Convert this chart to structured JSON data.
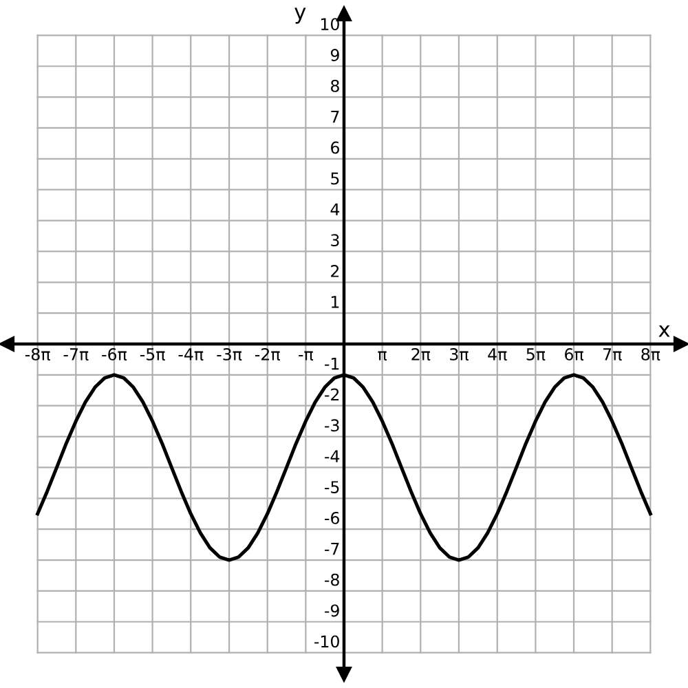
{
  "chart_data": {
    "type": "line",
    "xlabel": "x",
    "ylabel": "y",
    "xlim": [
      -27.65,
      27.65
    ],
    "ylim": [
      -10.7,
      10.7
    ],
    "xticks": [
      {
        "value": -25.13,
        "label": "-8π"
      },
      {
        "value": -21.99,
        "label": "-7π"
      },
      {
        "value": -18.85,
        "label": "-6π"
      },
      {
        "value": -15.71,
        "label": "-5π"
      },
      {
        "value": -12.57,
        "label": "-4π"
      },
      {
        "value": -9.42,
        "label": "-3π"
      },
      {
        "value": -6.28,
        "label": "-2π"
      },
      {
        "value": -3.14,
        "label": "-π"
      },
      {
        "value": 3.14,
        "label": "π"
      },
      {
        "value": 6.28,
        "label": "2π"
      },
      {
        "value": 9.42,
        "label": "3π"
      },
      {
        "value": 12.57,
        "label": "4π"
      },
      {
        "value": 15.71,
        "label": "5π"
      },
      {
        "value": 18.85,
        "label": "6π"
      },
      {
        "value": 21.99,
        "label": "7π"
      },
      {
        "value": 25.13,
        "label": "8π"
      }
    ],
    "yticks": [
      -10,
      -9,
      -8,
      -7,
      -6,
      -5,
      -4,
      -3,
      -2,
      -1,
      1,
      2,
      3,
      4,
      5,
      6,
      7,
      8,
      9,
      10
    ],
    "grid": true,
    "marker": "none",
    "line_style": "solid",
    "series": [
      {
        "color": "#000000",
        "x": [
          -25.13,
          -24.35,
          -23.56,
          -22.78,
          -21.99,
          -21.21,
          -20.42,
          -19.63,
          -18.85,
          -18.06,
          -17.28,
          -16.49,
          -15.71,
          -14.92,
          -14.14,
          -13.35,
          -12.57,
          -11.78,
          -11.0,
          -10.21,
          -9.42,
          -8.64,
          -7.85,
          -7.07,
          -6.28,
          -5.5,
          -4.71,
          -3.93,
          -3.14,
          -2.36,
          -1.57,
          -0.79,
          0,
          0.79,
          1.57,
          2.36,
          3.14,
          3.93,
          4.71,
          5.5,
          6.28,
          7.07,
          7.85,
          8.64,
          9.42,
          10.21,
          11.0,
          11.78,
          12.57,
          13.35,
          14.14,
          14.92,
          15.71,
          16.49,
          17.28,
          18.06,
          18.85,
          19.63,
          20.42,
          21.21,
          21.99,
          22.78,
          23.56,
          24.35,
          25.13
        ],
        "values": [
          -5.5,
          -4.78,
          -4,
          -3.22,
          -2.5,
          -1.88,
          -1.4,
          -1.1,
          -1,
          -1.1,
          -1.4,
          -1.88,
          -2.5,
          -3.22,
          -4,
          -4.78,
          -5.5,
          -6.12,
          -6.6,
          -6.9,
          -7,
          -6.9,
          -6.6,
          -6.12,
          -5.5,
          -4.78,
          -4,
          -3.22,
          -2.5,
          -1.88,
          -1.4,
          -1.1,
          -1,
          -1.1,
          -1.4,
          -1.88,
          -2.5,
          -3.22,
          -4,
          -4.78,
          -5.5,
          -6.12,
          -6.6,
          -6.9,
          -7,
          -6.9,
          -6.6,
          -6.12,
          -5.5,
          -4.78,
          -4,
          -3.22,
          -2.5,
          -1.88,
          -1.4,
          -1.1,
          -1,
          -1.1,
          -1.4,
          -1.88,
          -2.5,
          -3.22,
          -4,
          -4.78,
          -5.5
        ]
      }
    ]
  }
}
